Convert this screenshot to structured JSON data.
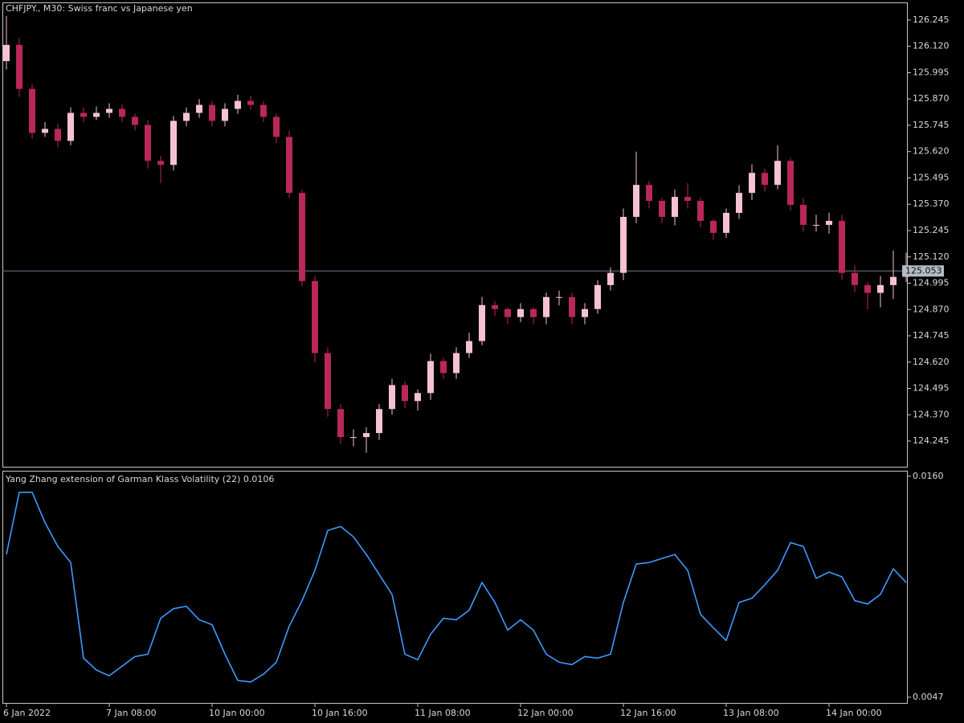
{
  "chart_data": [
    {
      "type": "candlestick",
      "title": "CHFJPY., M30:  Swiss franc vs Japanese yen",
      "categories": [
        "6 Jan 2022",
        null,
        null,
        null,
        null,
        null,
        null,
        null,
        "7 Jan 08:00",
        null,
        null,
        null,
        null,
        null,
        null,
        null,
        "10 Jan 00:00",
        null,
        null,
        null,
        null,
        null,
        null,
        null,
        "10 Jan 16:00",
        null,
        null,
        null,
        null,
        null,
        null,
        null,
        "11 Jan 08:00",
        null,
        null,
        null,
        null,
        null,
        null,
        null,
        "12 Jan 00:00",
        null,
        null,
        null,
        null,
        null,
        null,
        null,
        "12 Jan 16:00",
        null,
        null,
        null,
        null,
        null,
        null,
        null,
        "13 Jan 08:00",
        null,
        null,
        null,
        null,
        null,
        null,
        null,
        "14 Jan 00:00",
        null,
        null,
        null,
        null,
        null,
        null
      ],
      "open": [
        126.05,
        126.127,
        125.918,
        125.709,
        125.728,
        125.671,
        125.804,
        125.785,
        125.804,
        125.823,
        125.785,
        125.747,
        125.576,
        125.557,
        125.766,
        125.804,
        125.842,
        125.766,
        125.823,
        125.861,
        125.842,
        125.785,
        125.69,
        125.424,
        125.005,
        124.663,
        124.397,
        124.264,
        124.264,
        124.283,
        124.397,
        124.511,
        124.435,
        124.473,
        124.625,
        124.568,
        124.663,
        124.72,
        124.891,
        124.872,
        124.834,
        124.872,
        124.834,
        124.929,
        124.929,
        124.834,
        124.872,
        124.986,
        125.044,
        125.31,
        125.462,
        125.386,
        125.31,
        125.405,
        125.386,
        125.291,
        125.234,
        125.329,
        125.424,
        125.519,
        125.462,
        125.576,
        125.367,
        125.272,
        125.272,
        125.291,
        125.044,
        124.986,
        124.949,
        124.986,
        125.025
      ],
      "high": [
        126.265,
        126.16,
        125.94,
        125.76,
        125.75,
        125.83,
        125.83,
        125.835,
        125.85,
        125.845,
        125.8,
        125.77,
        125.6,
        125.79,
        125.83,
        125.87,
        125.86,
        125.85,
        125.89,
        125.885,
        125.86,
        125.8,
        125.72,
        125.44,
        125.03,
        124.69,
        124.42,
        124.3,
        124.31,
        124.42,
        124.54,
        124.53,
        124.49,
        124.66,
        124.64,
        124.69,
        124.76,
        124.93,
        124.91,
        124.88,
        124.9,
        124.88,
        124.95,
        124.96,
        124.95,
        124.9,
        125.01,
        125.07,
        125.35,
        125.62,
        125.48,
        125.4,
        125.44,
        125.47,
        125.4,
        125.3,
        125.35,
        125.46,
        125.56,
        125.54,
        125.65,
        125.59,
        125.4,
        125.32,
        125.33,
        125.32,
        125.08,
        125.0,
        125.03,
        125.15,
        125.14
      ],
      "low": [
        126.01,
        125.88,
        125.68,
        125.69,
        125.64,
        125.65,
        125.76,
        125.77,
        125.78,
        125.76,
        125.72,
        125.54,
        125.47,
        125.53,
        125.74,
        125.78,
        125.74,
        125.74,
        125.8,
        125.82,
        125.76,
        125.66,
        125.4,
        124.98,
        124.62,
        124.36,
        124.23,
        124.22,
        124.19,
        124.25,
        124.37,
        124.4,
        124.39,
        124.44,
        124.54,
        124.54,
        124.64,
        124.7,
        124.84,
        124.8,
        124.81,
        124.8,
        124.8,
        124.89,
        124.8,
        124.8,
        124.85,
        124.96,
        125.01,
        125.28,
        125.35,
        125.28,
        125.27,
        125.35,
        125.26,
        125.2,
        125.21,
        125.3,
        125.39,
        125.43,
        125.44,
        125.34,
        125.24,
        125.24,
        125.23,
        125.01,
        124.95,
        124.87,
        124.88,
        124.92,
        125.0
      ],
      "close": [
        126.127,
        125.918,
        125.709,
        125.728,
        125.671,
        125.804,
        125.785,
        125.804,
        125.823,
        125.785,
        125.747,
        125.576,
        125.557,
        125.766,
        125.804,
        125.842,
        125.766,
        125.823,
        125.861,
        125.842,
        125.785,
        125.69,
        125.424,
        125.005,
        124.663,
        124.397,
        124.264,
        124.264,
        124.283,
        124.397,
        124.511,
        124.435,
        124.473,
        124.625,
        124.568,
        124.663,
        124.72,
        124.891,
        124.872,
        124.834,
        124.872,
        124.834,
        124.929,
        124.929,
        124.834,
        124.872,
        124.986,
        125.044,
        125.31,
        125.462,
        125.386,
        125.31,
        125.405,
        125.386,
        125.291,
        125.234,
        125.329,
        125.424,
        125.519,
        125.462,
        125.576,
        125.367,
        125.272,
        125.272,
        125.291,
        125.044,
        124.986,
        124.949,
        124.986,
        125.025,
        125.053
      ],
      "up_color": "#f4c2d0",
      "down_color": "#b8285a",
      "last_price": 125.053,
      "last_price_color": "#708090",
      "ylim": [
        124.123,
        126.325
      ],
      "yticks": [
        {
          "value": 124.245,
          "label": "124.245"
        },
        {
          "value": 124.37,
          "label": "124.370"
        },
        {
          "value": 124.495,
          "label": "124.495"
        },
        {
          "value": 124.62,
          "label": "124.620"
        },
        {
          "value": 124.745,
          "label": "124.745"
        },
        {
          "value": 124.87,
          "label": "124.870"
        },
        {
          "value": 124.995,
          "label": "124.995"
        },
        {
          "value": 125.12,
          "label": "125.120"
        },
        {
          "value": 125.245,
          "label": "125.245"
        },
        {
          "value": 125.37,
          "label": "125.370"
        },
        {
          "value": 125.495,
          "label": "125.495"
        },
        {
          "value": 125.62,
          "label": "125.620"
        },
        {
          "value": 125.745,
          "label": "125.745"
        },
        {
          "value": 125.87,
          "label": "125.870"
        },
        {
          "value": 125.995,
          "label": "125.995"
        },
        {
          "value": 126.12,
          "label": "126.120"
        },
        {
          "value": 126.245,
          "label": "126.245"
        }
      ],
      "grid": false
    },
    {
      "type": "line",
      "title": "Yang Zhang extension of Garman Klass Volatility (22) 0.0106",
      "color": "#3d9bff",
      "values": [
        0.012,
        0.01518,
        0.01518,
        0.01363,
        0.01241,
        0.01159,
        0.0067,
        0.00609,
        0.0058,
        0.00629,
        0.00678,
        0.0069,
        0.00874,
        0.00923,
        0.00935,
        0.00866,
        0.00841,
        0.0069,
        0.00556,
        0.00548,
        0.00588,
        0.00649,
        0.00833,
        0.00964,
        0.01119,
        0.01323,
        0.01343,
        0.0129,
        0.012,
        0.01098,
        0.00996,
        0.0069,
        0.00662,
        0.00792,
        0.00874,
        0.00866,
        0.00915,
        0.01057,
        0.00955,
        0.00813,
        0.00866,
        0.00813,
        0.0069,
        0.00649,
        0.00637,
        0.00678,
        0.0067,
        0.0069,
        0.00955,
        0.01151,
        0.01159,
        0.0118,
        0.012,
        0.01119,
        0.00894,
        0.00825,
        0.0076,
        0.00955,
        0.00976,
        0.01045,
        0.01119,
        0.01261,
        0.01241,
        0.01078,
        0.0111,
        0.01086,
        0.00964,
        0.00947,
        0.00996,
        0.01127,
        0.01057
      ],
      "ylim": [
        0.00441,
        0.01624
      ],
      "yticks": [
        {
          "value": 0.0047,
          "label": "0.0047"
        },
        {
          "value": 0.016,
          "label": "0.0160"
        }
      ],
      "grid": false
    }
  ]
}
